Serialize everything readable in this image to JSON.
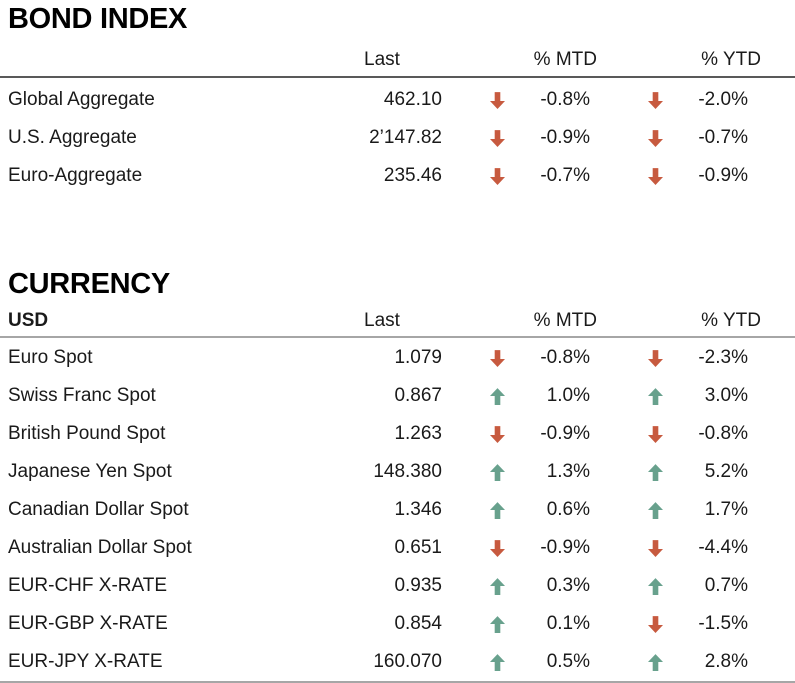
{
  "colors": {
    "up": "#68a18d",
    "down": "#c75a3f",
    "text": "#1a1a1a",
    "heading": "#000000",
    "bond_rule": "#595959",
    "currency_rule": "#a6a6a6"
  },
  "sections": [
    {
      "title": "BOND INDEX",
      "header": {
        "name": "",
        "last": "Last",
        "mtd": "% MTD",
        "ytd": "% YTD"
      },
      "rows": [
        {
          "name": "Global Aggregate",
          "last": "462.10",
          "mtd": {
            "dir": "down",
            "value": "-0.8%"
          },
          "ytd": {
            "dir": "down",
            "value": "-2.0%"
          }
        },
        {
          "name": "U.S. Aggregate",
          "last": "2’147.82",
          "mtd": {
            "dir": "down",
            "value": "-0.9%"
          },
          "ytd": {
            "dir": "down",
            "value": "-0.7%"
          }
        },
        {
          "name": "Euro-Aggregate",
          "last": "235.46",
          "mtd": {
            "dir": "down",
            "value": "-0.7%"
          },
          "ytd": {
            "dir": "down",
            "value": "-0.9%"
          }
        }
      ]
    },
    {
      "title": "CURRENCY",
      "header": {
        "name": "USD",
        "last": "Last",
        "mtd": "% MTD",
        "ytd": "% YTD"
      },
      "rows": [
        {
          "name": "Euro Spot",
          "last": "1.079",
          "mtd": {
            "dir": "down",
            "value": "-0.8%"
          },
          "ytd": {
            "dir": "down",
            "value": "-2.3%"
          }
        },
        {
          "name": "Swiss Franc Spot",
          "last": "0.867",
          "mtd": {
            "dir": "up",
            "value": "1.0%"
          },
          "ytd": {
            "dir": "up",
            "value": "3.0%"
          }
        },
        {
          "name": "British Pound Spot",
          "last": "1.263",
          "mtd": {
            "dir": "down",
            "value": "-0.9%"
          },
          "ytd": {
            "dir": "down",
            "value": "-0.8%"
          }
        },
        {
          "name": "Japanese Yen Spot",
          "last": "148.380",
          "mtd": {
            "dir": "up",
            "value": "1.3%"
          },
          "ytd": {
            "dir": "up",
            "value": "5.2%"
          }
        },
        {
          "name": "Canadian Dollar Spot",
          "last": "1.346",
          "mtd": {
            "dir": "up",
            "value": "0.6%"
          },
          "ytd": {
            "dir": "up",
            "value": "1.7%"
          }
        },
        {
          "name": "Australian Dollar Spot",
          "last": "0.651",
          "mtd": {
            "dir": "down",
            "value": "-0.9%"
          },
          "ytd": {
            "dir": "down",
            "value": "-4.4%"
          }
        },
        {
          "name": "EUR-CHF X-RATE",
          "last": "0.935",
          "mtd": {
            "dir": "up",
            "value": "0.3%"
          },
          "ytd": {
            "dir": "up",
            "value": "0.7%"
          }
        },
        {
          "name": "EUR-GBP X-RATE",
          "last": "0.854",
          "mtd": {
            "dir": "up",
            "value": "0.1%"
          },
          "ytd": {
            "dir": "down",
            "value": "-1.5%"
          }
        },
        {
          "name": "EUR-JPY X-RATE",
          "last": "160.070",
          "mtd": {
            "dir": "up",
            "value": "0.5%"
          },
          "ytd": {
            "dir": "up",
            "value": "2.8%"
          }
        }
      ]
    }
  ]
}
